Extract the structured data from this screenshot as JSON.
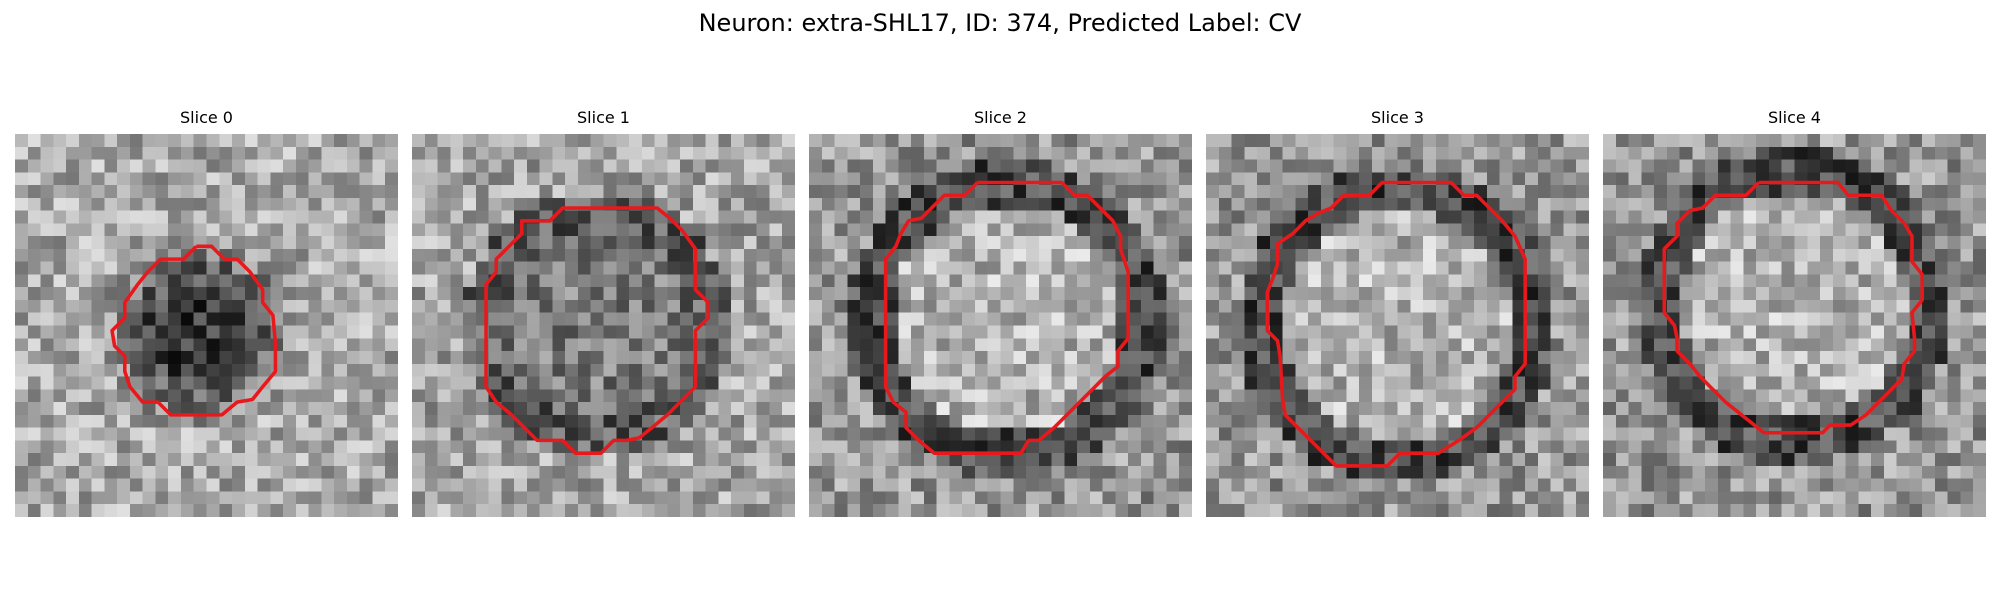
{
  "figure": {
    "title": "Neuron: extra-SHL17, ID: 374, Predicted Label: CV",
    "contour_color": "#e8191c"
  },
  "slices": [
    {
      "label": "Slice 0",
      "center": "dark"
    },
    {
      "label": "Slice 1",
      "center": "mid"
    },
    {
      "label": "Slice 2",
      "center": "light"
    },
    {
      "label": "Slice 3",
      "center": "light"
    },
    {
      "label": "Slice 4",
      "center": "light"
    }
  ]
}
